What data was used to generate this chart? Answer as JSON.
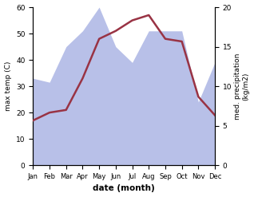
{
  "months": [
    "Jan",
    "Feb",
    "Mar",
    "Apr",
    "May",
    "Jun",
    "Jul",
    "Aug",
    "Sep",
    "Oct",
    "Nov",
    "Dec"
  ],
  "temperature": [
    17,
    20,
    21,
    33,
    48,
    51,
    55,
    57,
    48,
    47,
    26,
    19
  ],
  "precipitation": [
    11,
    10.5,
    15,
    17,
    20,
    15,
    13,
    17,
    17,
    17,
    8,
    13
  ],
  "temp_color": "#993344",
  "precip_fill_color": "#b8c0e8",
  "xlabel": "date (month)",
  "ylabel_left": "max temp (C)",
  "ylabel_right": "med. precipitation\n(kg/m2)",
  "ylim_left": [
    0,
    60
  ],
  "ylim_right": [
    0,
    20
  ],
  "yticks_left": [
    0,
    10,
    20,
    30,
    40,
    50,
    60
  ],
  "yticks_right": [
    0,
    5,
    10,
    15,
    20
  ]
}
